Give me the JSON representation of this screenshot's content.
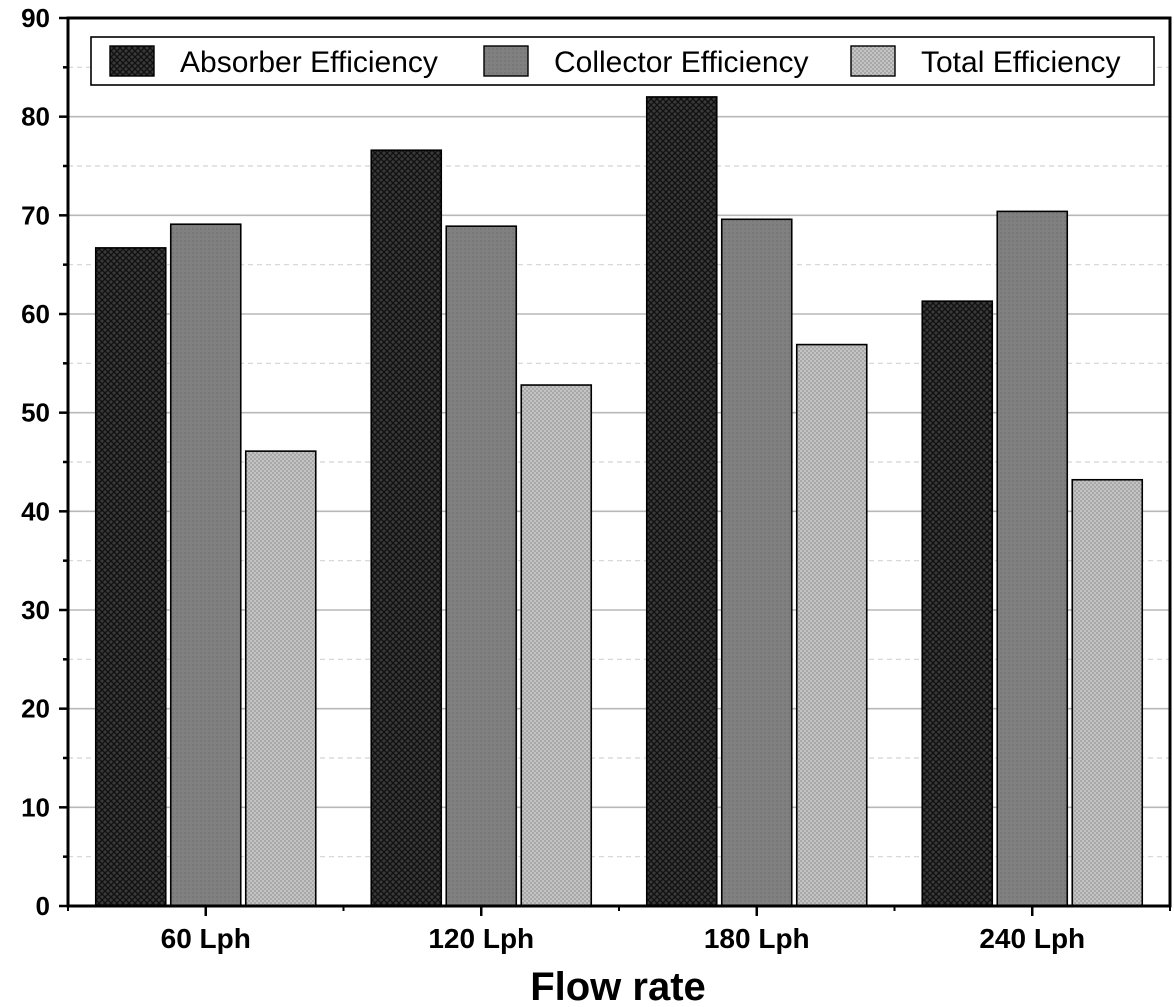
{
  "chart_data": {
    "type": "bar",
    "title": "",
    "xlabel": "Flow rate",
    "ylabel": "",
    "categories": [
      "60 Lph",
      "120 Lph",
      "180 Lph",
      "240 Lph"
    ],
    "series": [
      {
        "name": "Absorber Efficiency",
        "values": [
          66.7,
          76.6,
          82.0,
          61.3
        ],
        "color": "#2a2a2a"
      },
      {
        "name": "Collector Efficiency",
        "values": [
          69.1,
          68.9,
          69.6,
          70.4
        ],
        "color": "#7f7f7f"
      },
      {
        "name": "Total Efficiency",
        "values": [
          46.1,
          52.8,
          56.9,
          43.2
        ],
        "color": "#bdbdbd"
      }
    ],
    "ylim": [
      0,
      90
    ],
    "yticks": [
      0,
      10,
      20,
      30,
      40,
      50,
      60,
      70,
      80,
      90
    ],
    "grid": true,
    "legend_position": "top"
  }
}
